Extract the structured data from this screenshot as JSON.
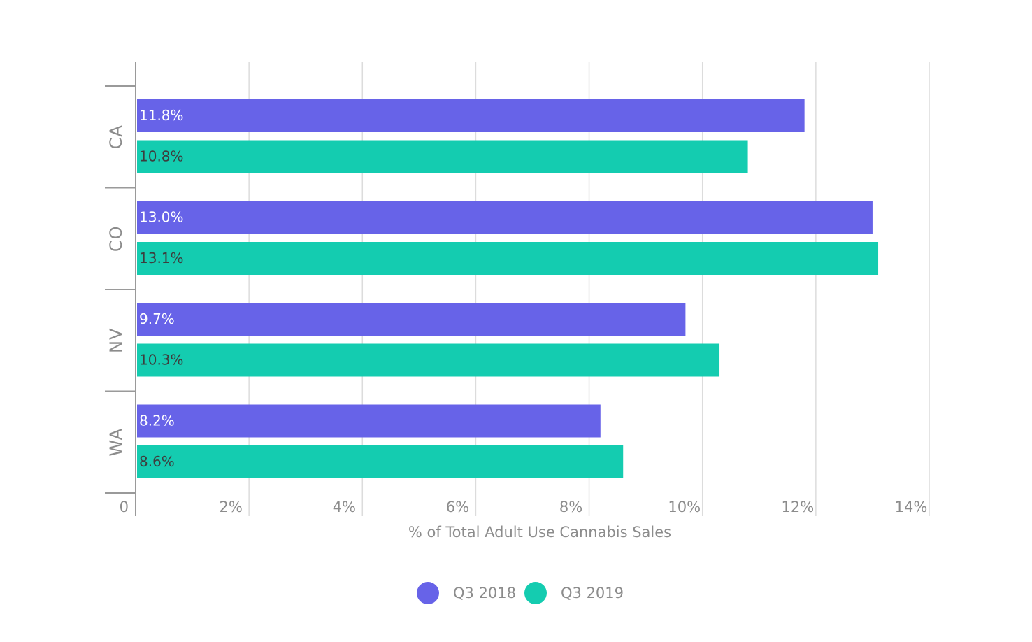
{
  "chart_data": {
    "type": "bar",
    "orientation": "horizontal",
    "categories": [
      "CA",
      "CO",
      "NV",
      "WA"
    ],
    "series": [
      {
        "name": "Q3 2018",
        "color": "#6763e8",
        "label_color": "#ffffff",
        "values": [
          11.8,
          13.0,
          9.7,
          8.2
        ],
        "labels": [
          "11.8%",
          "13.0%",
          "9.7%",
          "8.2%"
        ]
      },
      {
        "name": "Q3 2019",
        "color": "#14ccb0",
        "label_color": "#3d3d3d",
        "values": [
          10.8,
          13.1,
          10.3,
          8.6
        ],
        "labels": [
          "10.8%",
          "13.1%",
          "10.3%",
          "8.6%"
        ]
      }
    ],
    "xlabel": "% of Total Adult Use Cannabis Sales",
    "ylabel": "",
    "title": "",
    "xlim": [
      0,
      14
    ],
    "x_ticks": [
      0,
      2,
      4,
      6,
      8,
      10,
      12,
      14
    ],
    "x_tick_labels": [
      "0",
      "2%",
      "4%",
      "6%",
      "8%",
      "10%",
      "12%",
      "14%"
    ],
    "grid": "vertical",
    "legend_position": "bottom-center"
  }
}
